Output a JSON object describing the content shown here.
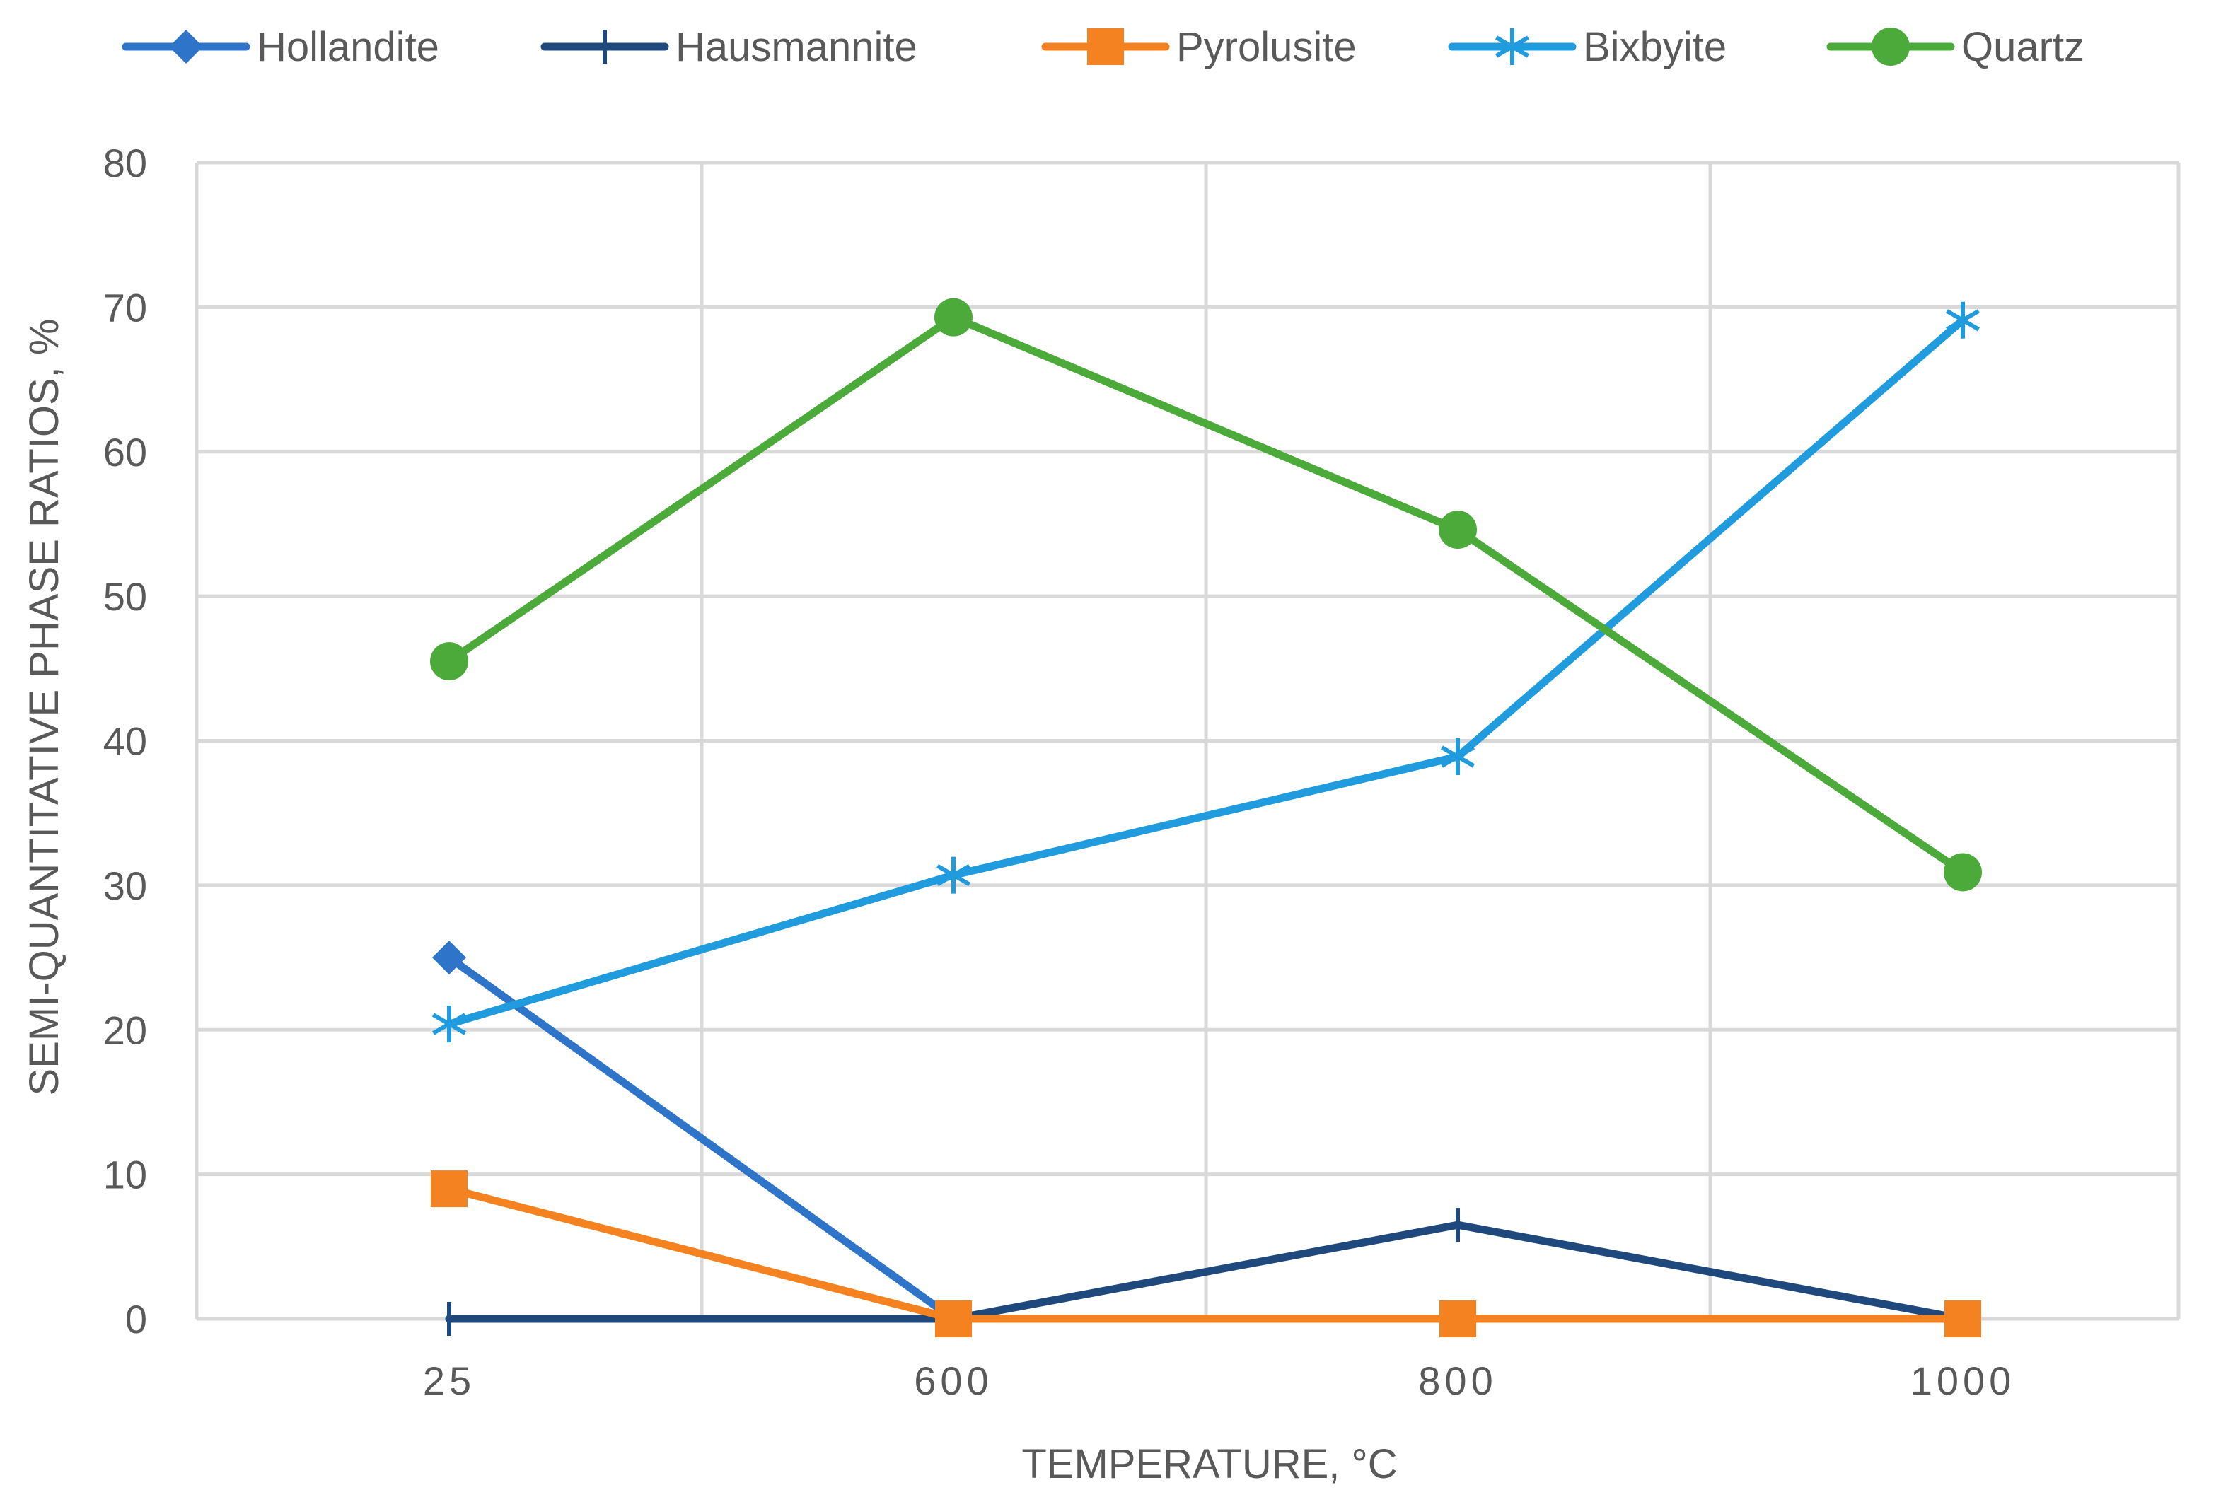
{
  "chart_data": {
    "type": "line",
    "title": "",
    "xlabel": "TEMPERATURE, °C",
    "ylabel": "SEMI-QUANTITATIVE PHASE RATIOS, %",
    "categories": [
      "25",
      "600",
      "800",
      "1000"
    ],
    "ylim": [
      0,
      80
    ],
    "yticks": [
      0,
      10,
      20,
      30,
      40,
      50,
      60,
      70,
      80
    ],
    "grid": true,
    "legend_position": "top",
    "series": [
      {
        "name": "Hollandite",
        "color": "#2E75C9",
        "marker": "diamond",
        "values": [
          25,
          0,
          null,
          null
        ]
      },
      {
        "name": "Hausmannite",
        "color": "#1F497D",
        "marker": "plus",
        "values": [
          0,
          0,
          6.5,
          0
        ]
      },
      {
        "name": "Pyrolusite",
        "color": "#F58220",
        "marker": "square",
        "values": [
          9,
          0,
          0,
          0
        ]
      },
      {
        "name": "Bixbyite",
        "color": "#1F9BDE",
        "marker": "star",
        "values": [
          20.4,
          30.7,
          38.9,
          69.1
        ]
      },
      {
        "name": "Quartz",
        "color": "#4BAA3A",
        "marker": "circle",
        "values": [
          45.5,
          69.3,
          54.6,
          30.9
        ]
      }
    ]
  }
}
